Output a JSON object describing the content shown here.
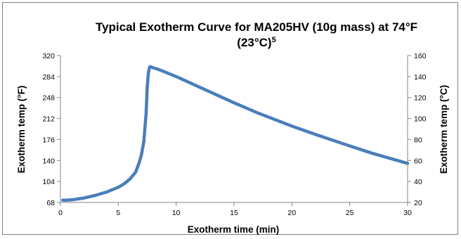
{
  "chart_data": {
    "type": "line",
    "title_line1": "Typical Exotherm Curve for MA205HV (10g mass) at 74°F",
    "title_line2": "(23°C)",
    "title_superscript": "5",
    "xlabel": "Exotherm time (min)",
    "ylabel": "Exotherm temp (°F)",
    "y2label": "Exotherm temp (°C)",
    "xlim": [
      0,
      30
    ],
    "ylim": [
      68,
      320
    ],
    "y2lim": [
      20,
      160
    ],
    "x_ticks": [
      "0",
      "5",
      "10",
      "15",
      "20",
      "25",
      "30"
    ],
    "y_ticks": [
      "68",
      "104",
      "140",
      "176",
      "212",
      "248",
      "284",
      "320"
    ],
    "y2_ticks": [
      "20",
      "40",
      "60",
      "80",
      "100",
      "120",
      "140",
      "160"
    ],
    "grid": false,
    "legend": "none",
    "line_color": "#4a7ebb",
    "series": [
      {
        "x": [
          0.2,
          0.5,
          1,
          1.5,
          2,
          3,
          4,
          5,
          5.5,
          6,
          6.5,
          6.8,
          7.0,
          7.2,
          7.4,
          7.5,
          7.6,
          7.7,
          7.8,
          7.9,
          8.0,
          8.5,
          9,
          10,
          11,
          12,
          13,
          15,
          17,
          20,
          22,
          25,
          27,
          30
        ],
        "y": [
          72,
          72,
          72.5,
          74,
          75.5,
          80,
          86,
          94,
          100,
          108,
          120,
          136,
          150,
          172,
          220,
          265,
          290,
          300,
          301,
          300,
          299,
          296,
          292,
          284,
          275,
          266,
          257,
          239,
          222,
          199,
          185,
          165,
          152,
          135
        ]
      }
    ]
  }
}
